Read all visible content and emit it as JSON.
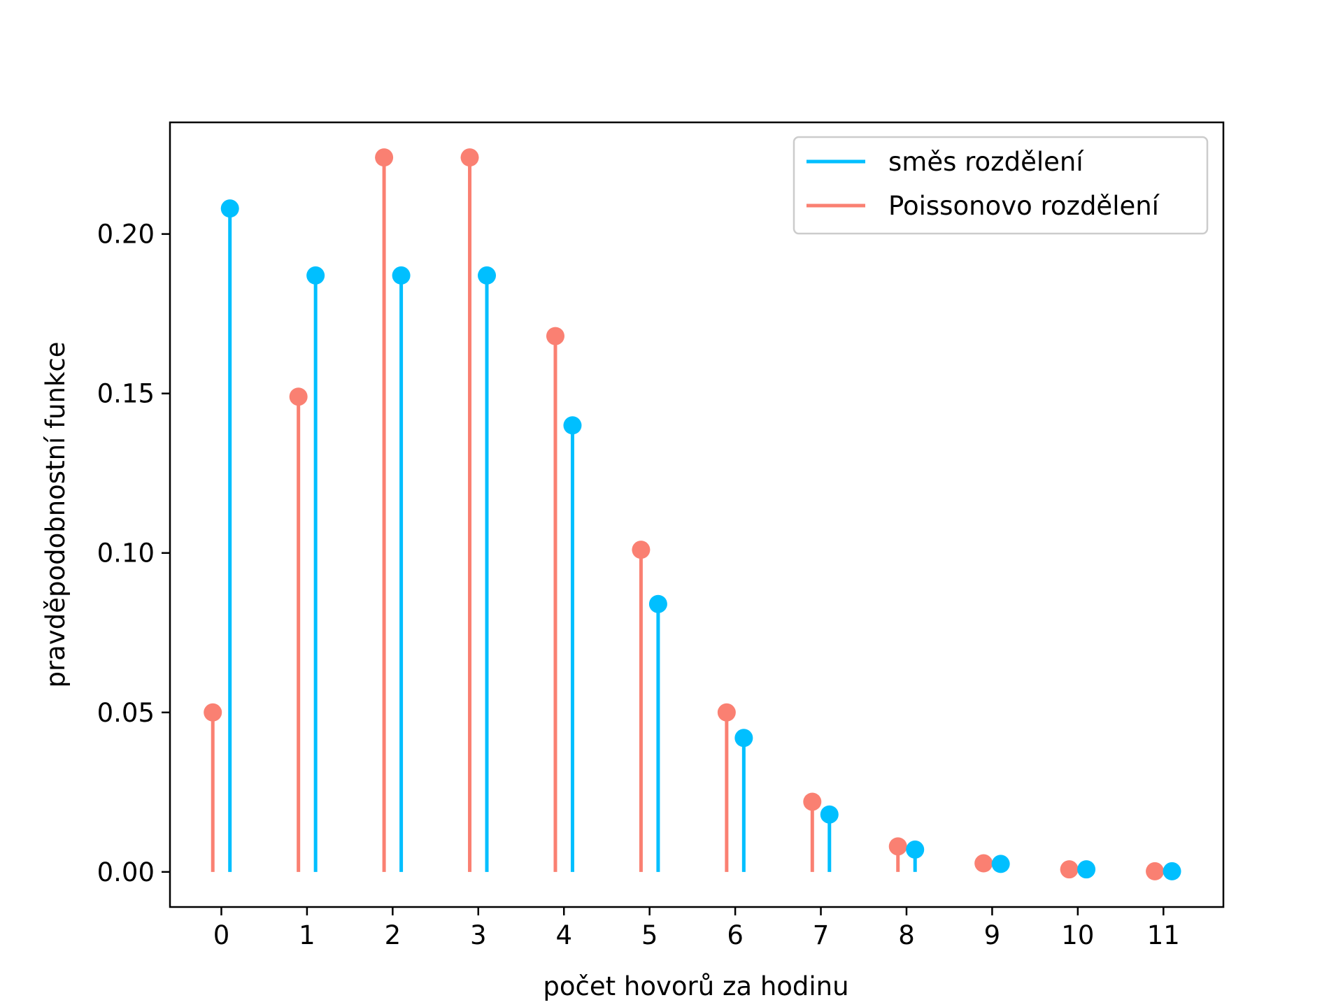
{
  "chart_data": {
    "type": "stem",
    "xlabel": "počet hovorů za hodinu",
    "ylabel": "pravděpodobnostní funkce",
    "x": [
      0,
      1,
      2,
      3,
      4,
      5,
      6,
      7,
      8,
      9,
      10,
      11
    ],
    "x_tick_labels": [
      "0",
      "1",
      "2",
      "3",
      "4",
      "5",
      "6",
      "7",
      "8",
      "9",
      "10",
      "11"
    ],
    "y_ticks": [
      0.0,
      0.05,
      0.1,
      0.15,
      0.2
    ],
    "y_tick_labels": [
      "0.00",
      "0.05",
      "0.10",
      "0.15",
      "0.20"
    ],
    "xlim": [
      -0.6,
      11.7
    ],
    "ylim": [
      -0.011,
      0.235
    ],
    "grid": false,
    "legend_position": "top-right",
    "series": [
      {
        "name": "směs rozdělení",
        "color": "#00BFFF",
        "x_offset": 0.1,
        "values": [
          0.208,
          0.187,
          0.187,
          0.187,
          0.14,
          0.084,
          0.042,
          0.018,
          0.007,
          0.0025,
          0.0008,
          0.0002
        ]
      },
      {
        "name": "Poissonovo rozdělení",
        "color": "#FA8072",
        "x_offset": -0.1,
        "values": [
          0.05,
          0.149,
          0.224,
          0.224,
          0.168,
          0.101,
          0.05,
          0.022,
          0.008,
          0.0027,
          0.0008,
          0.0002
        ]
      }
    ]
  }
}
